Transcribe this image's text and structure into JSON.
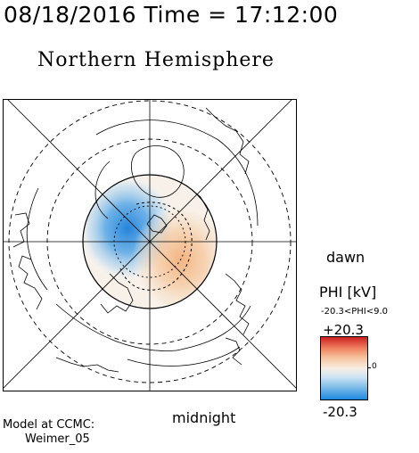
{
  "header": {
    "time_title": "08/18/2016 Time = 17:12:00",
    "hemisphere_title": "Northern Hemisphere"
  },
  "map": {
    "direction_labels": {
      "right": "dawn",
      "bottom": "midnight"
    },
    "pattern": "two-cell polar cap potential: negative (blue) cell on dusk/day side, positive (orange) cell on dawn/night side",
    "colors": {
      "positive": "#f08060",
      "negative": "#1e88e0",
      "neutral": "#f7eee2"
    }
  },
  "colorbar": {
    "title": "PHI [kV]",
    "range_text": "-20.3<PHI<9.0",
    "max_label": "+20.3",
    "min_label": "-20.3",
    "zero_label": "0"
  },
  "footer": {
    "model_label": "Model at CCMC:",
    "model_name": "Weimer_05"
  }
}
